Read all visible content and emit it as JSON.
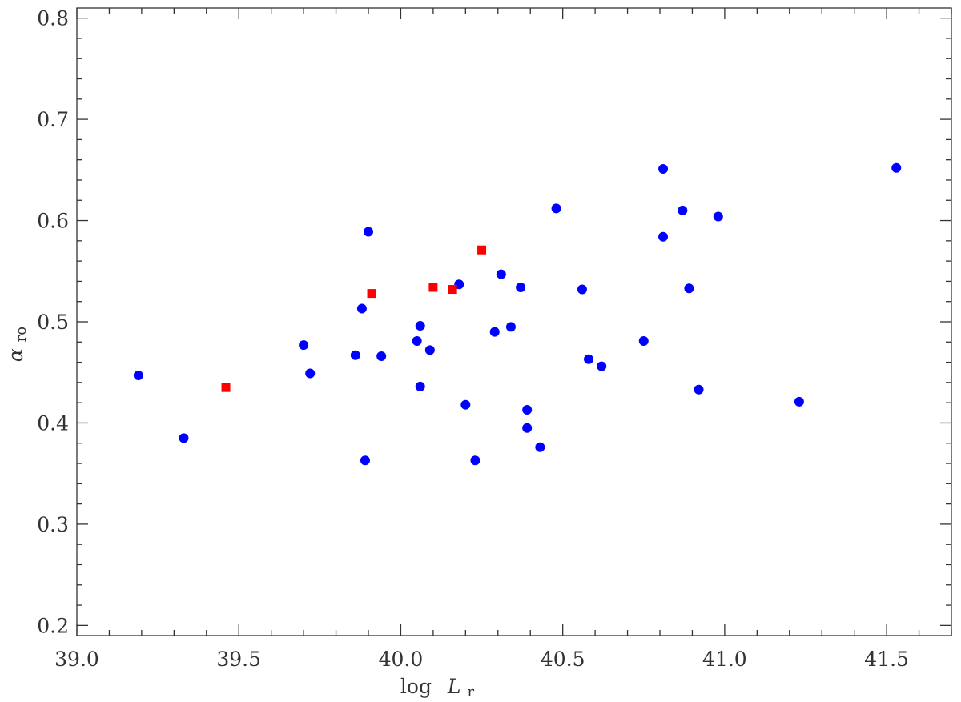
{
  "chart_data": {
    "type": "scatter",
    "title": "",
    "xlabel": "log L_r",
    "xlabel_parts": {
      "prefix": "log",
      "symbol": "L",
      "sub": "r"
    },
    "ylabel": "alpha_ro",
    "ylabel_parts": {
      "symbol": "α",
      "sub": "ro"
    },
    "xlim": [
      39.0,
      41.7
    ],
    "ylim": [
      0.19,
      0.81
    ],
    "x_major_ticks": [
      39.0,
      39.5,
      40.0,
      40.5,
      41.0,
      41.5
    ],
    "x_tick_labels": [
      "39.0",
      "39.5",
      "40.0",
      "40.5",
      "41.0",
      "41.5"
    ],
    "x_minor_step": 0.1,
    "y_major_ticks": [
      0.2,
      0.3,
      0.4,
      0.5,
      0.6,
      0.7,
      0.8
    ],
    "y_tick_labels": [
      "0.2",
      "0.3",
      "0.4",
      "0.5",
      "0.6",
      "0.7",
      "0.8"
    ],
    "y_minor_step": 0.02,
    "grid": false,
    "legend": "none",
    "series": [
      {
        "marker": "circle",
        "color": "#0000ff",
        "points": [
          [
            39.19,
            0.447
          ],
          [
            39.33,
            0.385
          ],
          [
            39.7,
            0.477
          ],
          [
            39.72,
            0.449
          ],
          [
            39.86,
            0.467
          ],
          [
            39.88,
            0.513
          ],
          [
            39.89,
            0.363
          ],
          [
            39.9,
            0.589
          ],
          [
            39.94,
            0.466
          ],
          [
            40.05,
            0.481
          ],
          [
            40.06,
            0.496
          ],
          [
            40.06,
            0.436
          ],
          [
            40.09,
            0.472
          ],
          [
            40.18,
            0.537
          ],
          [
            40.2,
            0.418
          ],
          [
            40.23,
            0.363
          ],
          [
            40.29,
            0.49
          ],
          [
            40.31,
            0.547
          ],
          [
            40.34,
            0.495
          ],
          [
            40.37,
            0.534
          ],
          [
            40.39,
            0.413
          ],
          [
            40.39,
            0.395
          ],
          [
            40.43,
            0.376
          ],
          [
            40.48,
            0.612
          ],
          [
            40.56,
            0.532
          ],
          [
            40.58,
            0.463
          ],
          [
            40.62,
            0.456
          ],
          [
            40.75,
            0.481
          ],
          [
            40.81,
            0.651
          ],
          [
            40.81,
            0.584
          ],
          [
            40.87,
            0.61
          ],
          [
            40.89,
            0.533
          ],
          [
            40.92,
            0.433
          ],
          [
            40.98,
            0.604
          ],
          [
            41.23,
            0.421
          ],
          [
            41.53,
            0.652
          ]
        ]
      },
      {
        "marker": "square",
        "color": "#ff0000",
        "points": [
          [
            39.46,
            0.435
          ],
          [
            39.91,
            0.528
          ],
          [
            40.1,
            0.534
          ],
          [
            40.16,
            0.532
          ],
          [
            40.25,
            0.571
          ]
        ]
      }
    ]
  }
}
